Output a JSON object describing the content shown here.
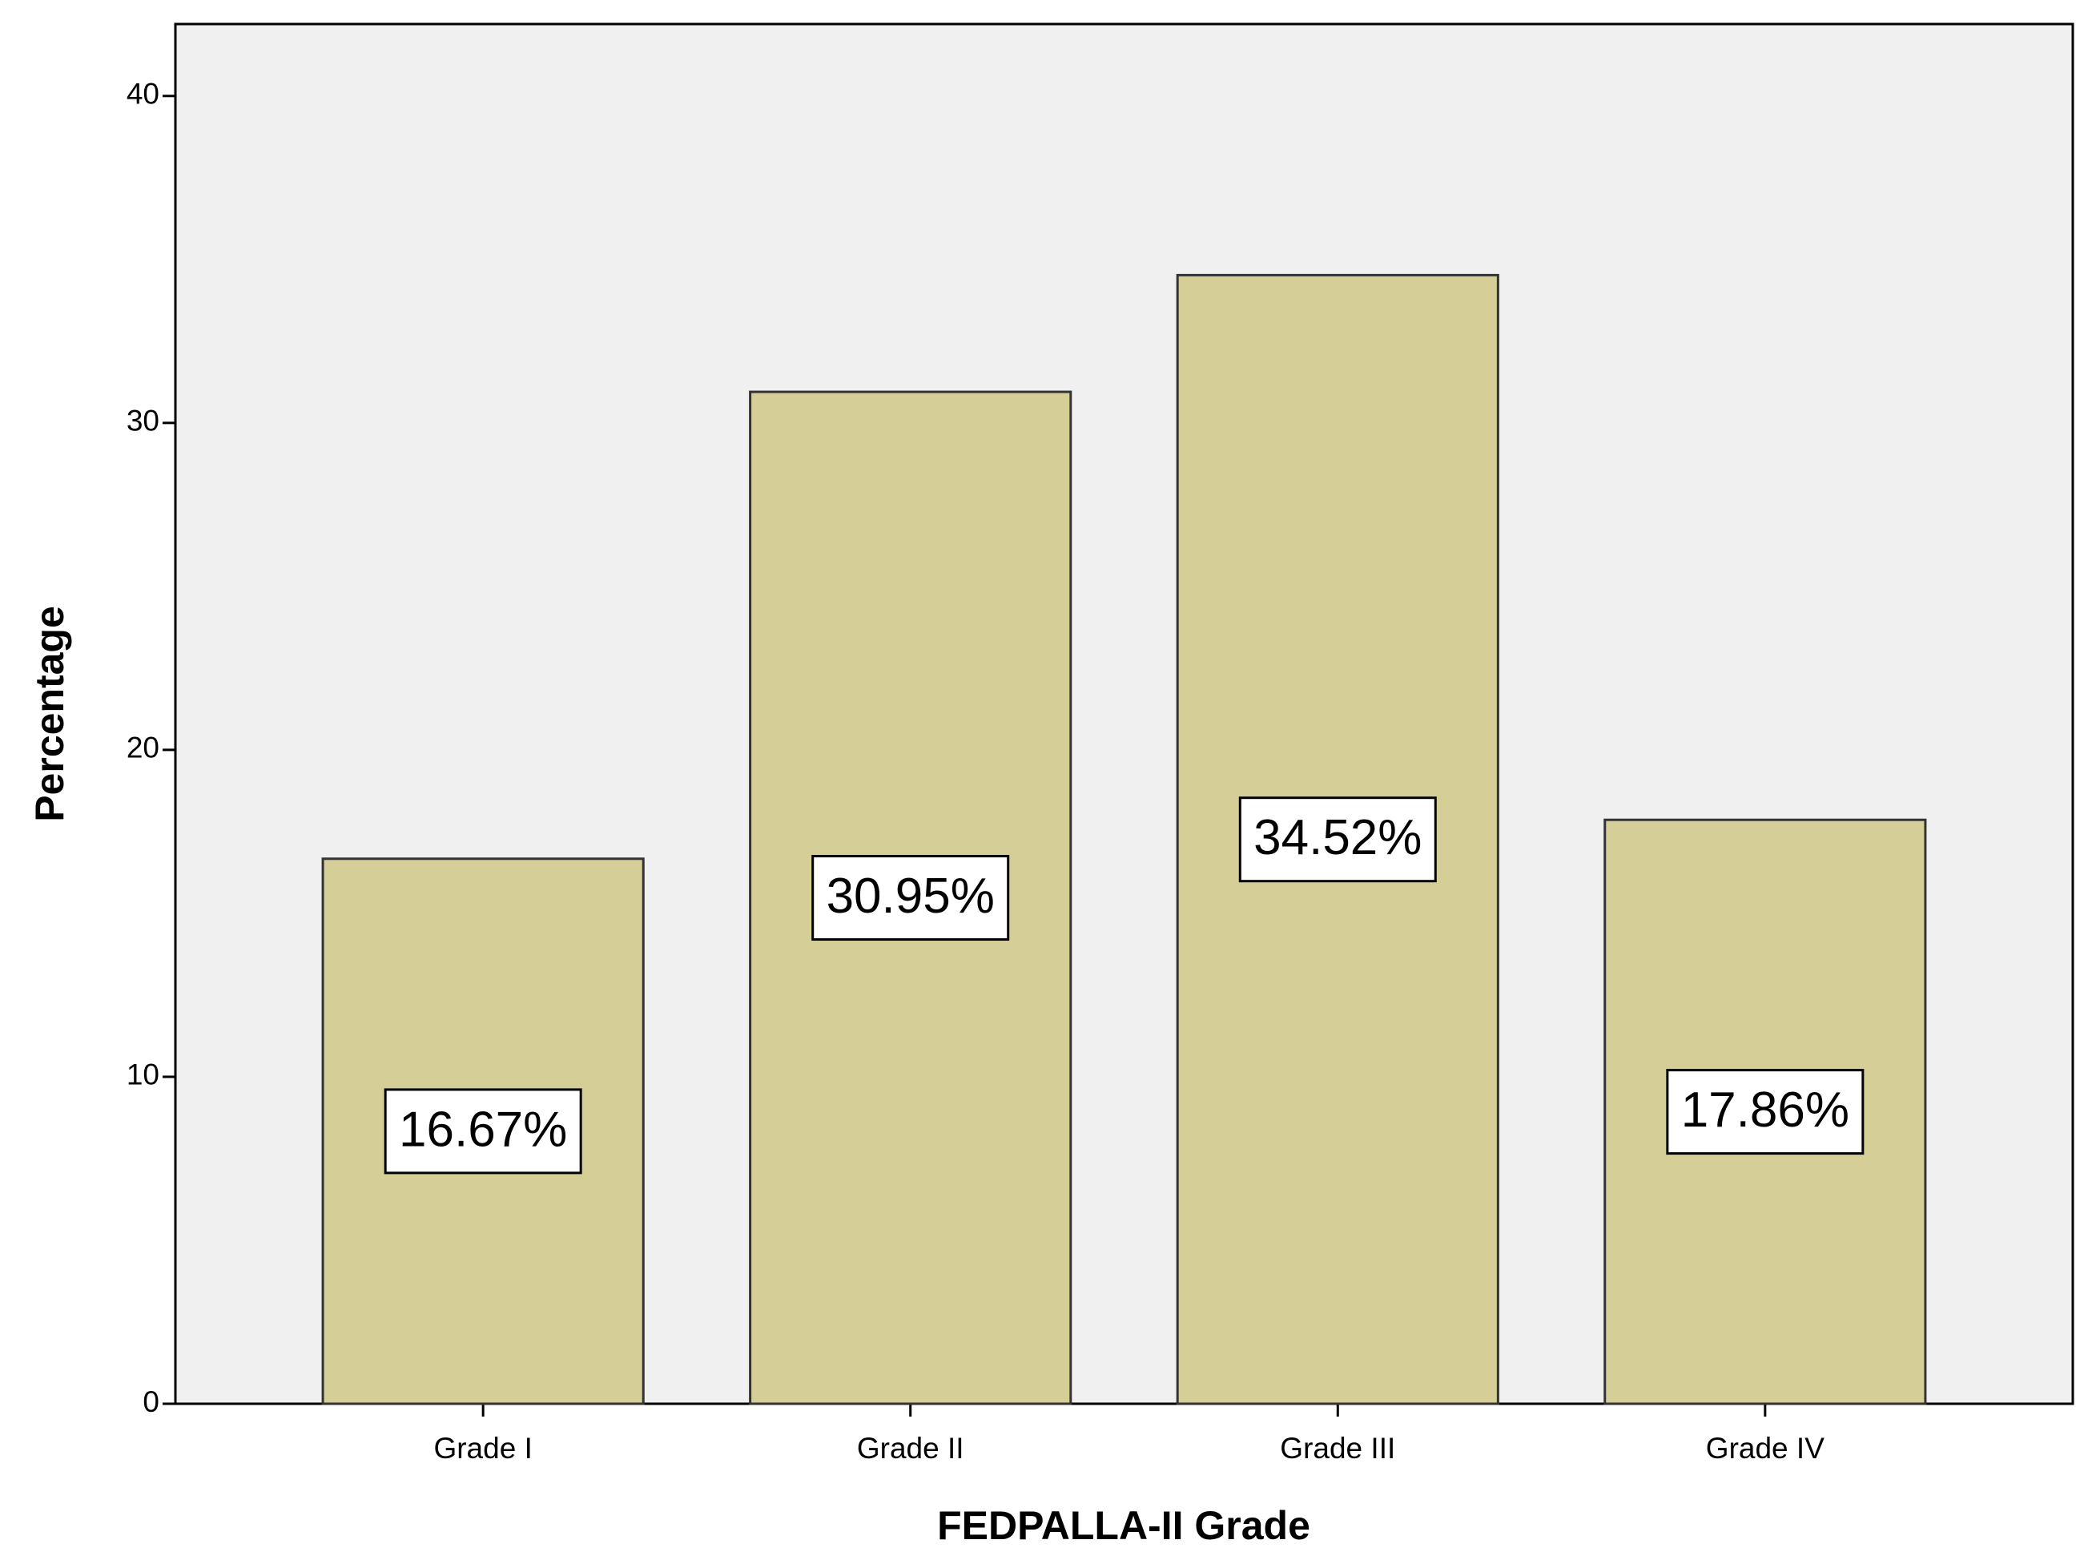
{
  "chart_data": {
    "type": "bar",
    "x_label": "FEDPALLA-II Grade",
    "y_label": "Percentage",
    "categories": [
      "Grade I",
      "Grade II",
      "Grade III",
      "Grade IV"
    ],
    "values": [
      16.67,
      30.95,
      34.52,
      17.86
    ],
    "value_labels": [
      "16.67%",
      "30.95%",
      "34.52%",
      "17.86%"
    ],
    "color": "#d5cf97",
    "ylim": [
      0,
      42.2
    ],
    "yticks": [
      0,
      10,
      20,
      30,
      40
    ]
  }
}
